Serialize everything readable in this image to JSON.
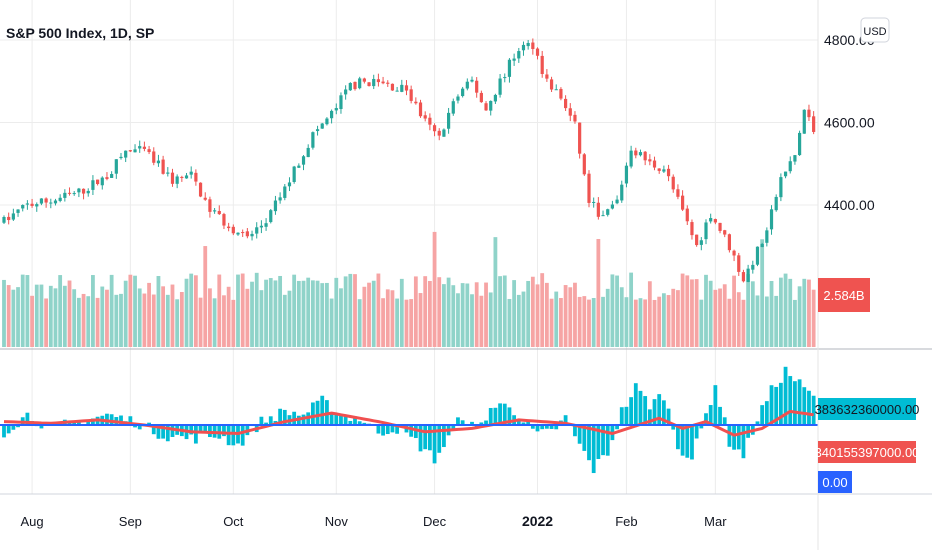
{
  "chart_data": {
    "type": "candlestick",
    "title": "S&P 500 Index, 1D, SP",
    "currency_button": "USD",
    "price_ticks": [
      "4800.00",
      "4600.00",
      "4400.00"
    ],
    "price_tick_values": [
      4800,
      4600,
      4400
    ],
    "x_ticks": [
      {
        "label": "Aug",
        "index": 6,
        "bold": false
      },
      {
        "label": "Sep",
        "index": 27,
        "bold": false
      },
      {
        "label": "Oct",
        "index": 49,
        "bold": false
      },
      {
        "label": "Nov",
        "index": 71,
        "bold": false
      },
      {
        "label": "Dec",
        "index": 92,
        "bold": false
      },
      {
        "label": "2022",
        "index": 114,
        "bold": true
      },
      {
        "label": "Feb",
        "index": 133,
        "bold": false
      },
      {
        "label": "Mar",
        "index": 152,
        "bold": false
      }
    ],
    "colors": {
      "up": "#26a69a",
      "down": "#ef5350",
      "volume_up": "#8fd3c9",
      "volume_down": "#f6a4a4",
      "histogram": "#00bcd4",
      "ma_line": "#f05050",
      "zero_line": "#2962ff",
      "grid": "#ececec"
    },
    "price_anchors": [
      [
        0,
        4360
      ],
      [
        5,
        4400
      ],
      [
        10,
        4410
      ],
      [
        16,
        4430
      ],
      [
        22,
        4470
      ],
      [
        26,
        4530
      ],
      [
        30,
        4530
      ],
      [
        36,
        4460
      ],
      [
        40,
        4470
      ],
      [
        44,
        4390
      ],
      [
        48,
        4350
      ],
      [
        52,
        4320
      ],
      [
        56,
        4360
      ],
      [
        60,
        4440
      ],
      [
        66,
        4570
      ],
      [
        70,
        4620
      ],
      [
        74,
        4690
      ],
      [
        78,
        4700
      ],
      [
        82,
        4690
      ],
      [
        86,
        4680
      ],
      [
        90,
        4600
      ],
      [
        93,
        4560
      ],
      [
        96,
        4650
      ],
      [
        100,
        4700
      ],
      [
        103,
        4630
      ],
      [
        106,
        4700
      ],
      [
        110,
        4780
      ],
      [
        113,
        4790
      ],
      [
        116,
        4700
      ],
      [
        119,
        4660
      ],
      [
        122,
        4590
      ],
      [
        125,
        4410
      ],
      [
        128,
        4370
      ],
      [
        131,
        4410
      ],
      [
        134,
        4540
      ],
      [
        138,
        4500
      ],
      [
        141,
        4490
      ],
      [
        144,
        4410
      ],
      [
        148,
        4300
      ],
      [
        151,
        4380
      ],
      [
        155,
        4300
      ],
      [
        158,
        4220
      ],
      [
        162,
        4310
      ],
      [
        166,
        4460
      ],
      [
        169,
        4520
      ],
      [
        171,
        4630
      ],
      [
        173,
        4580
      ]
    ],
    "volume_labels": {
      "current": "2.584B",
      "values_billion": [
        3.0,
        2.9,
        2.8,
        3.4,
        2.7,
        2.9,
        3.1,
        3.8,
        2.9,
        3.8
      ]
    },
    "oscillator": {
      "value_label": "383632360000.00",
      "ma_label": "340155397000.00",
      "zero_label": "0.00",
      "anchors": [
        [
          0,
          -0.2
        ],
        [
          5,
          0.3
        ],
        [
          10,
          -0.1
        ],
        [
          16,
          0.1
        ],
        [
          22,
          0.3
        ],
        [
          28,
          0.1
        ],
        [
          34,
          -0.3
        ],
        [
          40,
          -0.4
        ],
        [
          46,
          -0.3
        ],
        [
          50,
          -0.6
        ],
        [
          55,
          0.1
        ],
        [
          60,
          0.4
        ],
        [
          64,
          0.3
        ],
        [
          68,
          0.7
        ],
        [
          72,
          0.3
        ],
        [
          76,
          0.2
        ],
        [
          80,
          -0.2
        ],
        [
          84,
          -0.1
        ],
        [
          88,
          -0.5
        ],
        [
          92,
          -1.0
        ],
        [
          95,
          -0.4
        ],
        [
          98,
          0.3
        ],
        [
          101,
          -0.2
        ],
        [
          104,
          0.5
        ],
        [
          108,
          0.6
        ],
        [
          111,
          0.1
        ],
        [
          114,
          -0.3
        ],
        [
          117,
          -0.2
        ],
        [
          120,
          0.2
        ],
        [
          123,
          -0.6
        ],
        [
          126,
          -1.3
        ],
        [
          129,
          -0.8
        ],
        [
          132,
          0.4
        ],
        [
          135,
          1.1
        ],
        [
          138,
          0.6
        ],
        [
          141,
          0.9
        ],
        [
          144,
          -0.6
        ],
        [
          147,
          -1.0
        ],
        [
          150,
          0.3
        ],
        [
          152,
          1.2
        ],
        [
          155,
          -0.5
        ],
        [
          158,
          -0.9
        ],
        [
          161,
          0.2
        ],
        [
          164,
          1.0
        ],
        [
          167,
          1.6
        ],
        [
          170,
          1.2
        ],
        [
          173,
          0.8
        ]
      ],
      "ma_anchors": [
        [
          0,
          0.1
        ],
        [
          10,
          0.05
        ],
        [
          20,
          0.15
        ],
        [
          30,
          0.0
        ],
        [
          40,
          -0.2
        ],
        [
          50,
          -0.25
        ],
        [
          60,
          0.1
        ],
        [
          70,
          0.35
        ],
        [
          80,
          0.1
        ],
        [
          90,
          -0.2
        ],
        [
          100,
          -0.1
        ],
        [
          110,
          0.15
        ],
        [
          120,
          0.05
        ],
        [
          130,
          -0.25
        ],
        [
          140,
          0.2
        ],
        [
          145,
          -0.1
        ],
        [
          150,
          0.1
        ],
        [
          156,
          -0.3
        ],
        [
          162,
          -0.1
        ],
        [
          168,
          0.4
        ],
        [
          173,
          0.3
        ]
      ]
    }
  }
}
